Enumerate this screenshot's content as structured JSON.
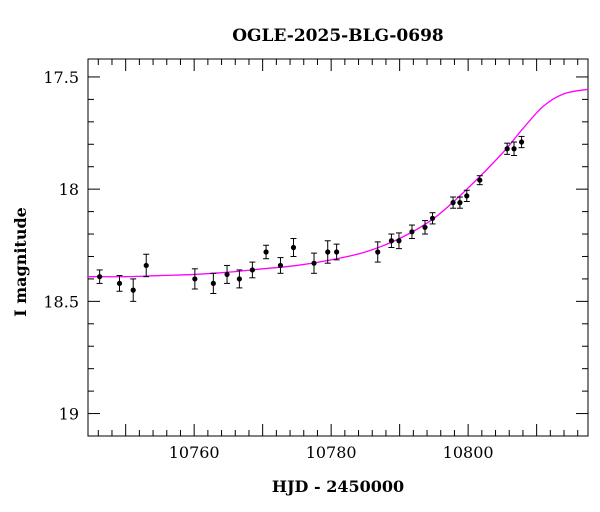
{
  "chart_data": {
    "type": "scatter",
    "title": "OGLE-2025-BLG-0698",
    "xlabel": "HJD - 2450000",
    "ylabel": "I magnitude",
    "xlim": [
      10744.5,
      10817.5
    ],
    "ylim": [
      19.1,
      17.42
    ],
    "y_inverted": true,
    "x_major_ticks": [
      10760,
      10780,
      10800
    ],
    "x_tick_labels": [
      "10760",
      "10780",
      "10800"
    ],
    "y_major_ticks": [
      17.5,
      18,
      18.5,
      19
    ],
    "y_tick_labels": [
      "17.5",
      "18",
      "18.5",
      "19"
    ],
    "grid": false,
    "model_color": "#ff00ff",
    "point_color": "#000000",
    "series": [
      {
        "kind": "points",
        "x": [
          10746.2,
          10749.1,
          10751.1,
          10753.0,
          10760.1,
          10762.8,
          10764.8,
          10766.6,
          10768.5,
          10770.5,
          10772.6,
          10774.5,
          10777.5,
          10779.5,
          10780.8,
          10786.8,
          10788.8,
          10789.9,
          10791.8,
          10793.7,
          10794.8,
          10797.8,
          10798.8,
          10799.8,
          10801.7,
          10805.7,
          10806.7,
          10807.8
        ],
        "y": [
          18.39,
          18.42,
          18.45,
          18.34,
          18.4,
          18.42,
          18.38,
          18.4,
          18.36,
          18.28,
          18.34,
          18.26,
          18.33,
          18.28,
          18.28,
          18.28,
          18.23,
          18.23,
          18.19,
          18.17,
          18.13,
          18.06,
          18.06,
          18.03,
          17.96,
          17.82,
          17.82,
          17.79
        ],
        "yerr": [
          0.03,
          0.035,
          0.05,
          0.05,
          0.045,
          0.045,
          0.04,
          0.04,
          0.035,
          0.03,
          0.035,
          0.04,
          0.045,
          0.05,
          0.035,
          0.045,
          0.03,
          0.035,
          0.03,
          0.03,
          0.025,
          0.025,
          0.025,
          0.025,
          0.02,
          0.025,
          0.03,
          0.025
        ]
      },
      {
        "kind": "model-curve",
        "x": [
          10744.5,
          10750,
          10755,
          10760,
          10765,
          10770,
          10775,
          10780,
          10785,
          10790,
          10795,
          10800,
          10805,
          10808,
          10811,
          10814,
          10817.5
        ],
        "y": [
          18.39,
          18.39,
          18.385,
          18.38,
          18.37,
          18.355,
          18.34,
          18.315,
          18.28,
          18.22,
          18.13,
          17.995,
          17.84,
          17.73,
          17.63,
          17.575,
          17.555
        ]
      }
    ]
  }
}
